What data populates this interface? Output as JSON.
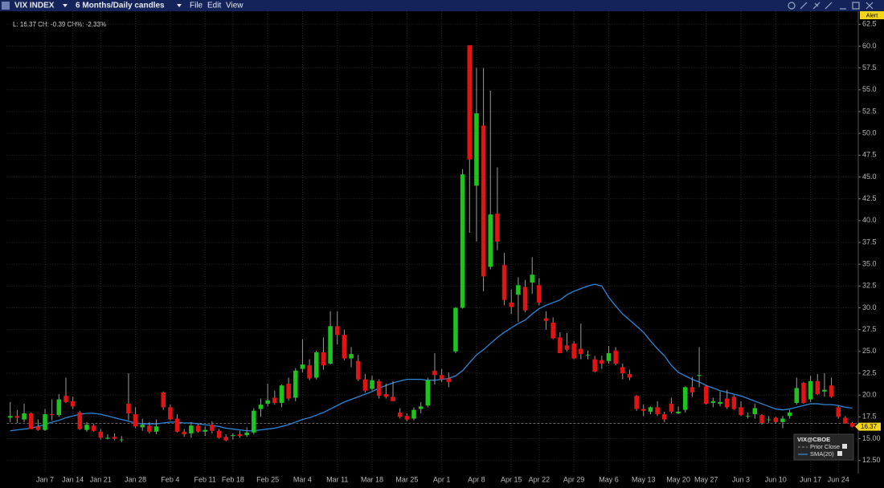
{
  "toolbar": {
    "symbol": "VIX INDEX",
    "period": "6 Months/Daily candles",
    "menus": [
      "File",
      "Edit",
      "View"
    ],
    "alert": "Alert"
  },
  "chart_data": {
    "type": "candlestick",
    "quote": "L: 16.37  CH: -0.39  CH%: -2.33%",
    "categories": [
      null,
      null,
      null,
      null,
      null,
      "Jan 7",
      null,
      null,
      null,
      "Jan 14",
      null,
      null,
      null,
      "Jan 21",
      null,
      null,
      null,
      null,
      "Jan 28",
      null,
      null,
      null,
      null,
      "Feb 4",
      null,
      null,
      null,
      null,
      "Feb 11",
      null,
      null,
      null,
      "Feb 18",
      null,
      null,
      null,
      null,
      "Feb 25",
      null,
      null,
      null,
      null,
      "Mar 4",
      null,
      null,
      null,
      null,
      "Mar 11",
      null,
      null,
      null,
      null,
      "Mar 18",
      null,
      null,
      null,
      null,
      "Mar 25",
      null,
      null,
      null,
      null,
      "Apr 1",
      null,
      null,
      null,
      null,
      "Apr 8",
      null,
      null,
      null,
      null,
      "Apr 15",
      null,
      null,
      null,
      "Apr 22",
      null,
      null,
      null,
      null,
      "Apr 29",
      null,
      null,
      null,
      null,
      "May 6",
      null,
      null,
      null,
      null,
      "May 13",
      null,
      null,
      null,
      null,
      "May 20",
      null,
      null,
      null,
      "May 27",
      null,
      null,
      null,
      null,
      "Jun 3",
      null,
      null,
      null,
      null,
      "Jun 10",
      null,
      null,
      null,
      null,
      "Jun 17",
      null,
      null,
      null,
      "Jun 24",
      null,
      null
    ],
    "candles": {
      "name": "VIX@CBOE",
      "up_color": "#1ec41e",
      "down_color": "#e01414",
      "ohlc": [
        [
          17.4,
          19.2,
          16.9,
          17.6
        ],
        [
          17.6,
          18.3,
          16.8,
          17.4
        ],
        [
          17.2,
          19.0,
          16.9,
          17.9
        ],
        [
          17.9,
          18.0,
          16.1,
          16.1
        ],
        [
          16.4,
          17.2,
          15.9,
          16.0
        ],
        [
          16.0,
          18.4,
          15.9,
          17.8
        ],
        [
          17.8,
          19.5,
          17.1,
          17.7
        ],
        [
          17.7,
          20.1,
          17.5,
          19.5
        ],
        [
          19.9,
          22.0,
          19.1,
          19.2
        ],
        [
          19.3,
          19.8,
          18.4,
          18.7
        ],
        [
          18.0,
          18.2,
          16.0,
          16.1
        ],
        [
          16.0,
          16.9,
          15.8,
          16.6
        ],
        [
          16.5,
          16.7,
          15.8,
          15.9
        ],
        [
          15.8,
          16.1,
          14.9,
          15.1
        ],
        [
          15.0,
          15.5,
          14.9,
          15.1
        ],
        [
          15.2,
          15.6,
          14.8,
          15.0
        ],
        [
          14.9,
          15.3,
          14.6,
          14.9
        ],
        [
          19.0,
          22.5,
          17.1,
          17.9
        ],
        [
          17.8,
          18.6,
          16.2,
          16.4
        ],
        [
          16.3,
          17.3,
          15.9,
          16.6
        ],
        [
          16.5,
          16.9,
          15.6,
          15.8
        ],
        [
          15.8,
          17.2,
          15.5,
          16.4
        ],
        [
          20.3,
          20.4,
          18.3,
          18.6
        ],
        [
          18.6,
          18.9,
          17.1,
          17.2
        ],
        [
          17.3,
          17.8,
          15.7,
          15.8
        ],
        [
          15.8,
          16.1,
          15.2,
          15.5
        ],
        [
          15.6,
          16.9,
          15.1,
          16.5
        ],
        [
          16.5,
          16.7,
          15.7,
          15.8
        ],
        [
          15.8,
          16.4,
          15.3,
          16.0
        ],
        [
          16.6,
          17.0,
          15.6,
          15.9
        ],
        [
          15.9,
          16.1,
          15.0,
          15.1
        ],
        [
          15.2,
          15.5,
          14.7,
          14.8
        ],
        [
          15.3,
          15.6,
          14.9,
          15.4
        ],
        [
          15.5,
          15.9,
          15.1,
          15.3
        ],
        [
          15.4,
          16.3,
          15.2,
          15.7
        ],
        [
          15.7,
          18.5,
          15.5,
          18.2
        ],
        [
          18.4,
          19.6,
          17.5,
          18.9
        ],
        [
          19.0,
          21.3,
          18.7,
          19.4
        ],
        [
          19.7,
          20.5,
          18.9,
          19.1
        ],
        [
          19.1,
          21.2,
          18.6,
          21.1
        ],
        [
          21.3,
          22.0,
          19.4,
          19.6
        ],
        [
          19.7,
          23.1,
          19.3,
          22.8
        ],
        [
          23.0,
          26.4,
          22.6,
          23.5
        ],
        [
          23.4,
          24.1,
          21.7,
          21.9
        ],
        [
          22.0,
          25.1,
          21.8,
          24.9
        ],
        [
          24.9,
          26.6,
          22.9,
          23.4
        ],
        [
          23.6,
          29.6,
          23.5,
          27.9
        ],
        [
          27.9,
          29.6,
          25.8,
          26.9
        ],
        [
          26.9,
          27.5,
          24.0,
          24.2
        ],
        [
          24.2,
          25.5,
          23.2,
          24.7
        ],
        [
          23.9,
          24.6,
          21.6,
          21.8
        ],
        [
          21.8,
          22.4,
          20.3,
          20.5
        ],
        [
          20.7,
          22.2,
          20.5,
          21.7
        ],
        [
          21.6,
          21.8,
          19.6,
          19.9
        ],
        [
          20.1,
          21.3,
          19.6,
          19.8
        ],
        [
          19.8,
          21.6,
          19.3,
          19.3
        ],
        [
          18.0,
          18.5,
          17.3,
          17.5
        ],
        [
          17.6,
          17.9,
          17.0,
          17.2
        ],
        [
          17.3,
          18.6,
          17.1,
          18.3
        ],
        [
          18.4,
          19.2,
          17.9,
          18.7
        ],
        [
          18.8,
          22.0,
          18.6,
          21.7
        ],
        [
          22.8,
          24.8,
          21.2,
          22.3
        ],
        [
          22.3,
          23.0,
          21.5,
          21.8
        ],
        [
          21.9,
          22.6,
          20.9,
          21.5
        ],
        [
          25.0,
          30.1,
          24.8,
          30.0
        ],
        [
          30.0,
          45.9,
          29.9,
          45.3
        ],
        [
          60.1,
          60.1,
          38.6,
          47.0
        ],
        [
          44.0,
          57.5,
          37.6,
          52.3
        ],
        [
          50.9,
          57.5,
          31.9,
          33.6
        ],
        [
          34.7,
          54.9,
          34.4,
          40.7
        ],
        [
          40.8,
          46.1,
          36.6,
          37.6
        ],
        [
          34.9,
          36.3,
          30.3,
          30.9
        ],
        [
          30.6,
          32.1,
          29.3,
          30.1
        ],
        [
          31.5,
          33.5,
          28.4,
          32.6
        ],
        [
          32.4,
          33.2,
          29.5,
          29.7
        ],
        [
          32.9,
          35.8,
          31.6,
          33.8
        ],
        [
          32.6,
          33.4,
          30.3,
          30.6
        ],
        [
          28.8,
          29.6,
          27.5,
          28.5
        ],
        [
          28.3,
          28.9,
          26.4,
          26.5
        ],
        [
          26.6,
          27.2,
          24.8,
          24.8
        ],
        [
          25.7,
          27.1,
          25.0,
          25.2
        ],
        [
          25.9,
          26.2,
          24.1,
          24.2
        ],
        [
          25.3,
          28.2,
          24.1,
          24.7
        ],
        [
          24.6,
          25.1,
          24.1,
          24.6
        ],
        [
          24.1,
          24.5,
          22.6,
          22.7
        ],
        [
          24.0,
          24.5,
          23.0,
          23.6
        ],
        [
          23.9,
          25.6,
          23.6,
          24.8
        ],
        [
          25.1,
          25.5,
          23.4,
          23.6
        ],
        [
          23.2,
          23.6,
          21.8,
          22.5
        ],
        [
          22.4,
          22.9,
          21.7,
          22.0
        ],
        [
          19.9,
          20.0,
          18.2,
          18.4
        ],
        [
          18.4,
          18.9,
          17.6,
          18.2
        ],
        [
          18.1,
          18.7,
          17.8,
          18.6
        ],
        [
          18.6,
          19.3,
          17.6,
          17.8
        ],
        [
          17.8,
          18.1,
          16.9,
          17.2
        ],
        [
          19.0,
          19.7,
          17.9,
          18.1
        ],
        [
          17.9,
          18.7,
          17.8,
          18.1
        ],
        [
          18.3,
          21.0,
          18.0,
          20.9
        ],
        [
          20.9,
          22.1,
          19.8,
          20.3
        ],
        [
          22.2,
          25.5,
          20.9,
          22.3
        ],
        [
          21.0,
          21.1,
          18.9,
          19.0
        ],
        [
          19.1,
          19.7,
          18.6,
          19.3
        ],
        [
          19.0,
          20.4,
          18.7,
          19.2
        ],
        [
          19.6,
          20.6,
          18.4,
          18.6
        ],
        [
          19.8,
          20.0,
          18.3,
          18.4
        ],
        [
          18.6,
          19.3,
          17.6,
          17.7
        ],
        [
          17.6,
          18.0,
          17.3,
          17.6
        ],
        [
          17.8,
          19.0,
          17.3,
          18.5
        ],
        [
          17.7,
          17.8,
          16.6,
          16.8
        ],
        [
          17.2,
          17.6,
          16.8,
          17.2
        ],
        [
          17.4,
          17.5,
          16.7,
          16.9
        ],
        [
          16.9,
          17.6,
          16.2,
          17.3
        ],
        [
          17.6,
          18.3,
          17.3,
          18.0
        ],
        [
          19.1,
          22.0,
          18.9,
          20.8
        ],
        [
          21.4,
          21.5,
          19.0,
          19.1
        ],
        [
          19.5,
          22.2,
          19.2,
          21.6
        ],
        [
          21.6,
          22.4,
          20.0,
          20.1
        ],
        [
          20.4,
          22.5,
          19.8,
          20.6
        ],
        [
          21.1,
          22.0,
          19.7,
          19.8
        ],
        [
          18.6,
          18.8,
          17.3,
          17.5
        ],
        [
          17.4,
          17.6,
          16.7,
          16.76
        ],
        [
          16.8,
          16.9,
          16.3,
          16.37
        ]
      ]
    },
    "series": [
      {
        "name": "SMA(20)",
        "color": "#2f86d6",
        "values": [
          15.9,
          16.0,
          16.1,
          16.2,
          16.4,
          16.6,
          16.9,
          17.1,
          17.4,
          17.6,
          17.8,
          17.9,
          17.9,
          17.8,
          17.6,
          17.4,
          17.2,
          17.0,
          16.8,
          16.7,
          16.7,
          16.7,
          16.8,
          16.9,
          16.9,
          16.8,
          16.8,
          16.7,
          16.6,
          16.5,
          16.4,
          16.2,
          16.1,
          16.0,
          15.9,
          15.9,
          16.0,
          16.1,
          16.2,
          16.4,
          16.6,
          16.9,
          17.2,
          17.4,
          17.7,
          18.0,
          18.4,
          18.8,
          19.2,
          19.5,
          19.8,
          20.1,
          20.4,
          20.8,
          21.1,
          21.4,
          21.6,
          21.8,
          21.8,
          21.8,
          21.7,
          21.7,
          21.8,
          21.9,
          22.2,
          22.8,
          23.7,
          24.6,
          25.2,
          25.9,
          26.6,
          27.2,
          27.7,
          28.2,
          28.6,
          29.3,
          29.9,
          30.3,
          30.6,
          30.9,
          31.5,
          31.9,
          32.2,
          32.5,
          32.7,
          32.5,
          31.2,
          30.2,
          29.3,
          28.6,
          27.9,
          27.2,
          26.2,
          25.3,
          24.5,
          23.4,
          22.6,
          22.2,
          21.8,
          21.5,
          21.1,
          20.8,
          20.5,
          20.3,
          20.1,
          19.9,
          19.6,
          19.3,
          19.0,
          18.7,
          18.4,
          18.3,
          18.4,
          18.6,
          18.8,
          19.0,
          19.0,
          18.9,
          18.9,
          18.8,
          18.6,
          18.5
        ]
      }
    ],
    "prior_close": {
      "name": "Prior Close",
      "value": 16.76,
      "color": "#8a8a8a"
    },
    "ylim": [
      11,
      64
    ],
    "yticks": [
      {
        "value": 12.5,
        "label": "12.50"
      },
      {
        "value": 15,
        "label": "15.00"
      },
      17.5,
      {
        "value": 20,
        "label": "20.0"
      },
      22.5,
      {
        "value": 25,
        "label": "25.0"
      },
      27.5,
      {
        "value": 30,
        "label": "30.0"
      },
      32.5,
      {
        "value": 35,
        "label": "35.0"
      },
      37.5,
      {
        "value": 40,
        "label": "40.0"
      },
      42.5,
      {
        "value": 45,
        "label": "45.0"
      },
      47.5,
      {
        "value": 50,
        "label": "50.0"
      },
      52.5,
      {
        "value": 55,
        "label": "55.0"
      },
      57.5,
      {
        "value": 60,
        "label": "60.0"
      },
      62.5
    ],
    "grid": true
  }
}
